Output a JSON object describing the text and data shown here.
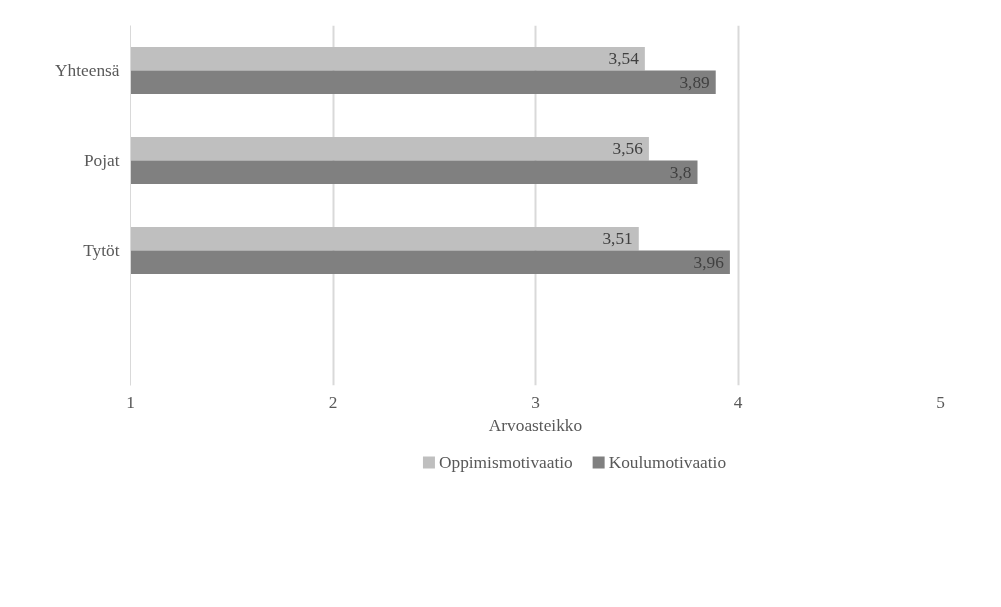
{
  "chart_data": {
    "type": "bar",
    "orientation": "horizontal",
    "categories": [
      "Yhteensä",
      "Pojat",
      "Tytöt"
    ],
    "series": [
      {
        "name": "Oppimismotivaatio",
        "color": "#bfbfbf",
        "values": [
          3.54,
          3.56,
          3.51
        ],
        "value_labels": [
          "3,54",
          "3,56",
          "3,51"
        ]
      },
      {
        "name": "Koulumotivaatio",
        "color": "#808080",
        "values": [
          3.89,
          3.8,
          3.96
        ],
        "value_labels": [
          "3,89",
          "3,8",
          "3,96"
        ]
      }
    ],
    "xlabel": "Arvoasteikko",
    "xlim": [
      1,
      5
    ],
    "xticks": [
      1,
      2,
      3,
      4,
      5
    ],
    "grid": "x",
    "legend": "bottom"
  }
}
